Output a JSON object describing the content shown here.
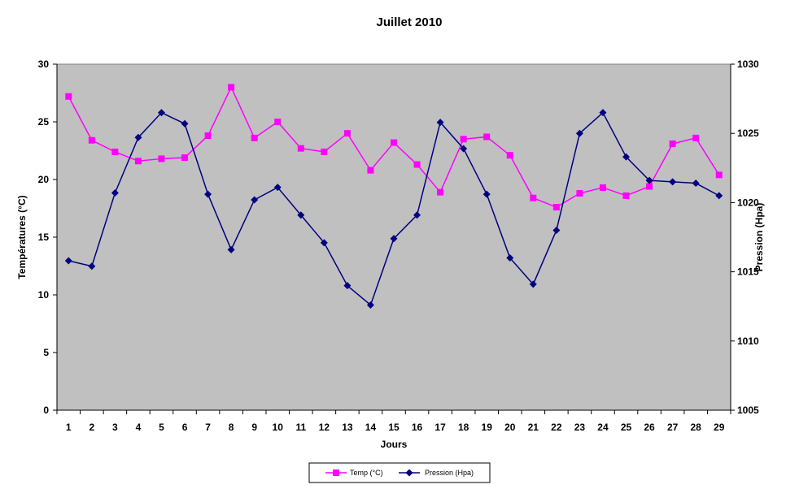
{
  "chart_data": {
    "type": "line",
    "title": "Juillet 2010",
    "xlabel": "Jours",
    "ylabel_left": "Températures (°C)",
    "ylabel_right": "Pression (Hpa)",
    "categories": [
      "1",
      "2",
      "3",
      "4",
      "5",
      "6",
      "7",
      "8",
      "9",
      "10",
      "11",
      "12",
      "13",
      "14",
      "15",
      "16",
      "17",
      "18",
      "19",
      "20",
      "21",
      "22",
      "23",
      "24",
      "25",
      "26",
      "27",
      "28",
      "29"
    ],
    "ylim_left": [
      0,
      30
    ],
    "yticks_left": [
      "0",
      "5",
      "10",
      "15",
      "20",
      "25",
      "30"
    ],
    "ylim_right": [
      1005,
      1030
    ],
    "yticks_right": [
      "1005",
      "1010",
      "1015",
      "1020",
      "1025",
      "1030"
    ],
    "grid": false,
    "plot_background": "#C0C0C0",
    "legend_position": "bottom",
    "series": [
      {
        "name": "Temp (°C)",
        "axis": "left",
        "color": "#FF00FF",
        "marker": "square",
        "values": [
          27.2,
          23.4,
          22.4,
          21.6,
          21.8,
          21.9,
          23.8,
          28.0,
          23.6,
          25.0,
          22.7,
          22.4,
          24.0,
          20.8,
          23.2,
          21.3,
          18.9,
          23.5,
          23.7,
          22.1,
          18.4,
          17.6,
          18.8,
          19.3,
          18.6,
          19.4,
          23.1,
          23.6,
          20.4
        ]
      },
      {
        "name": "Pression (Hpa)",
        "axis": "right",
        "color": "#000080",
        "marker": "diamond",
        "values": [
          1015.8,
          1015.4,
          1020.7,
          1024.7,
          1026.5,
          1025.7,
          1020.6,
          1016.6,
          1020.2,
          1021.1,
          1019.1,
          1017.1,
          1014.0,
          1012.6,
          1017.4,
          1019.1,
          1025.8,
          1023.9,
          1020.6,
          1016.0,
          1014.1,
          1018.0,
          1025.0,
          1026.5,
          1023.3,
          1021.6,
          1021.5,
          1021.4,
          1020.5
        ]
      }
    ]
  }
}
